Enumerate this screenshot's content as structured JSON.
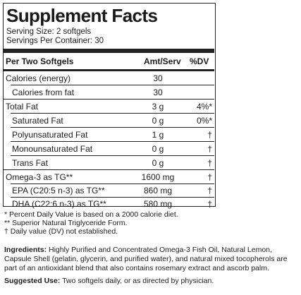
{
  "panel": {
    "title": "Supplement Facts",
    "serving_size": "Serving Size: 2 softgels",
    "servings_per_container": "Servings Per Container: 30",
    "header": {
      "name": "Per Two Softgels",
      "amount": "Amt/Serv",
      "dv": "%DV"
    },
    "rows": [
      {
        "name": "Calories (energy)",
        "amount": "30",
        "dv": ""
      },
      {
        "name": "Calories from fat",
        "amount": "30",
        "dv": ""
      },
      {
        "name": "Total Fat",
        "amount": "3 g",
        "dv": "4%*"
      },
      {
        "name": "Saturated Fat",
        "amount": "0 g",
        "dv": "0%*"
      },
      {
        "name": "Polyunsaturated Fat",
        "amount": "1 g",
        "dv": "†"
      },
      {
        "name": "Monounsaturated Fat",
        "amount": "0 g",
        "dv": "†"
      },
      {
        "name": "Trans Fat",
        "amount": "0 g",
        "dv": "†"
      },
      {
        "name": "Omega-3 as TG**",
        "amount": "1600 mg",
        "dv": "†"
      },
      {
        "name": "EPA (C20:5 n-3) as TG**",
        "amount": "860 mg",
        "dv": "†"
      },
      {
        "name": "DHA (C22:6 n-3) as TG**",
        "amount": "580 mg",
        "dv": "†"
      }
    ],
    "footnotes": [
      "* Percent Daily Value is based on a 2000 calorie diet.",
      "** Superior Natural Triglyceride Form.",
      "† Daily value (DV) not established."
    ]
  },
  "ingredients": {
    "label": "Ingredients:",
    "text": " Highly Purified and Concentrated Omega-3 Fish Oil, Natural Lemon, Capsule Shell (gelatin, glycerin, and purified water), and natural mixed tocopherols are part of an antioxidant blend that also contains rosemary extract and ascorb palm."
  },
  "suggested_use": {
    "label": "Suggested Use:",
    "text": " Two softgels daily, or as directed by physician."
  }
}
